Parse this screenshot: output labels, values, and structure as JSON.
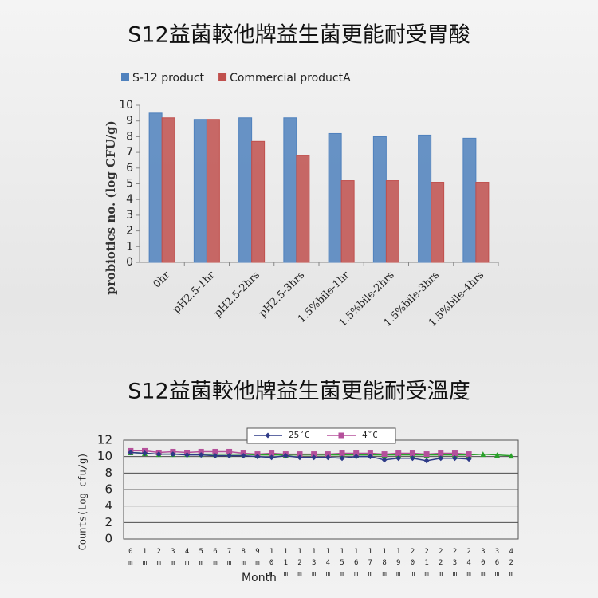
{
  "chart_data": [
    {
      "type": "bar",
      "title": "S12益菌較他牌益生菌更能耐受胃酸",
      "ylabel": "probiotics no. (log CFU/g)",
      "categories": [
        "0hr",
        "pH2.5-1hr",
        "pH2.5-2hrs",
        "pH2.5-3hrs",
        "1.5%bile-1hr",
        "1.5%bile-2hrs",
        "1.5%bile-3hrs",
        "1.5%bile-4hrs"
      ],
      "series": [
        {
          "name": "S-12 product",
          "color": "#4f81bd",
          "values": [
            9.5,
            9.1,
            9.2,
            9.2,
            8.2,
            8.0,
            8.1,
            7.9
          ]
        },
        {
          "name": "Commercial productA",
          "color": "#c0504d",
          "values": [
            9.2,
            9.1,
            7.7,
            6.8,
            5.2,
            5.2,
            5.1,
            5.1
          ]
        }
      ],
      "ylim": [
        0,
        10
      ],
      "yticks": [
        0,
        1,
        2,
        3,
        4,
        5,
        6,
        7,
        8,
        9,
        10
      ],
      "grid": false
    },
    {
      "type": "line",
      "title": "S12益菌較他牌益生菌更能耐受溫度",
      "xlabel": "Month",
      "ylabel": "Counts(Log cfu/g)",
      "categories": [
        "0 m",
        "1 m",
        "2 m",
        "3 m",
        "4 m",
        "5 m",
        "6 m",
        "7 m",
        "8 m",
        "9 m",
        "10 m",
        "11 m",
        "12 m",
        "13 m",
        "14 m",
        "15 m",
        "16 m",
        "17 m",
        "18 m",
        "19 m",
        "20 m",
        "21 m",
        "22 m",
        "23 m",
        "24 m",
        "30 m",
        "36 m",
        "42 m"
      ],
      "series": [
        {
          "name": "25˚C",
          "color": "#2e3a87",
          "marker": "diamond",
          "values": [
            10.5,
            10.4,
            10.3,
            10.3,
            10.2,
            10.2,
            10.1,
            10.1,
            10.1,
            10.0,
            9.9,
            10.1,
            9.9,
            9.9,
            9.9,
            9.8,
            10.0,
            10.0,
            9.6,
            9.8,
            9.8,
            9.5,
            9.8,
            9.8,
            9.7,
            null,
            null,
            null
          ]
        },
        {
          "name": "4˚C",
          "color": "#b5509b",
          "marker": "square",
          "values": [
            10.7,
            10.7,
            10.5,
            10.6,
            10.5,
            10.6,
            10.6,
            10.6,
            10.4,
            10.3,
            10.4,
            10.3,
            10.3,
            10.3,
            10.3,
            10.4,
            10.4,
            10.4,
            10.3,
            10.4,
            10.4,
            10.3,
            10.4,
            10.4,
            10.3,
            null,
            null,
            null
          ]
        },
        {
          "color": "#2aa02a",
          "marker": "triangle",
          "values": [
            10.5,
            10.4,
            10.3,
            10.3,
            10.3,
            10.3,
            10.3,
            10.3,
            10.3,
            10.2,
            10.2,
            10.2,
            10.2,
            10.2,
            10.2,
            10.2,
            10.2,
            10.2,
            10.2,
            10.2,
            10.2,
            10.2,
            10.2,
            10.2,
            10.2,
            10.3,
            10.2,
            10.1
          ]
        }
      ],
      "ylim": [
        0,
        12
      ],
      "yticks": [
        0,
        2,
        4,
        6,
        8,
        10,
        12
      ],
      "grid": true
    }
  ]
}
